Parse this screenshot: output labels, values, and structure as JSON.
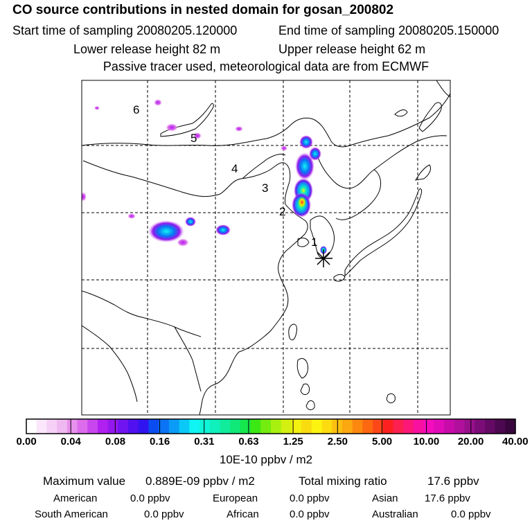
{
  "header": {
    "title": "CO  source contributions in nested domain for gosan_200802",
    "start_label": "Start time of sampling 20080205.120000",
    "end_label": "End time of sampling 20080205.150000",
    "lower_label": "Lower release height   82 m",
    "upper_label": "Upper release height   62 m",
    "note": "Passive tracer used, meteorological data are from ECMWF"
  },
  "map": {
    "labels": [
      "1",
      "2",
      "3",
      "4",
      "5",
      "6"
    ],
    "receptor_icon": "asterisk-icon"
  },
  "colorbar": {
    "ticks": [
      "0.00",
      "0.04",
      "0.08",
      "0.16",
      "0.31",
      "0.63",
      "1.25",
      "2.50",
      "5.00",
      "10.00",
      "20.00",
      "40.00"
    ],
    "units": "10E-10 ppbv / m2",
    "colors": [
      "#ffffff",
      "#fbe6fb",
      "#f6d0f6",
      "#f0b8f0",
      "#e890ee",
      "#dc6cec",
      "#c846ee",
      "#b020f0",
      "#9418ee",
      "#7014f0",
      "#5010f0",
      "#3014f0",
      "#0a4cf0",
      "#0a74f4",
      "#0a9cf6",
      "#0ac8f8",
      "#10f4f4",
      "#10f4d8",
      "#10f0bc",
      "#10ec9c",
      "#10e878",
      "#14e84c",
      "#3ce814",
      "#74ec10",
      "#a8f010",
      "#d4f010",
      "#f4f010",
      "#f8dc10",
      "#fcf410",
      "#fcdc10",
      "#fcc010",
      "#fca810",
      "#fc8810",
      "#fc6810",
      "#fc4818",
      "#fc2020",
      "#fc2050",
      "#fc1878",
      "#f810a0",
      "#f40cbc",
      "#e00cb8",
      "#c80caa",
      "#b0109c",
      "#98108c",
      "#7c0c78",
      "#640a64",
      "#4c0850",
      "#38063c"
    ]
  },
  "summary": {
    "max_label": "Maximum value",
    "max_value": "0.889E-09 ppbv / m2",
    "total_label": "Total mixing ratio",
    "total_value": "17.6 ppbv",
    "sources": [
      {
        "name": "American",
        "value": "0.0 ppbv"
      },
      {
        "name": "European",
        "value": "0.0 ppbv"
      },
      {
        "name": "Asian",
        "value": "17.6 ppbv"
      },
      {
        "name": "South American",
        "value": "0.0 ppbv"
      },
      {
        "name": "African",
        "value": "0.0 ppbv"
      },
      {
        "name": "Australian",
        "value": "0.0 ppbv"
      }
    ]
  }
}
